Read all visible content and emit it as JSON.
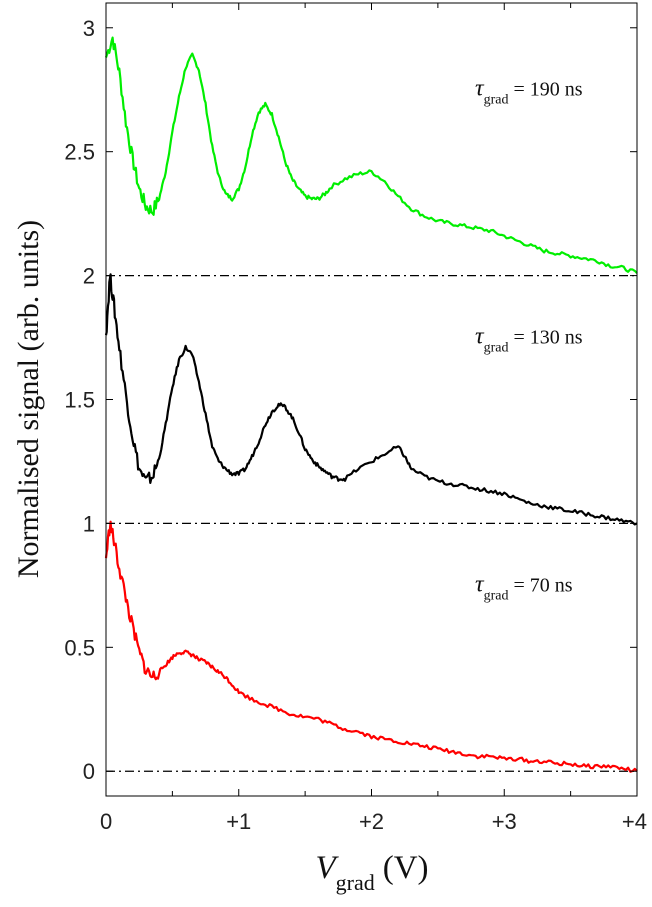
{
  "chart_data": {
    "type": "line",
    "xlabel": {
      "symbol": "V",
      "subscript": "grad",
      "unit": "(V)"
    },
    "ylabel": "Normalised signal (arb. units)",
    "xlim": [
      0,
      4
    ],
    "ylim": [
      -0.1,
      3.1
    ],
    "x_ticks": [
      {
        "value": 0,
        "label": "0"
      },
      {
        "value": 1,
        "label": "+1"
      },
      {
        "value": 2,
        "label": "+2"
      },
      {
        "value": 3,
        "label": "+3"
      },
      {
        "value": 4,
        "label": "+4"
      }
    ],
    "y_ticks": [
      {
        "value": 0,
        "label": "0"
      },
      {
        "value": 0.5,
        "label": "0.5"
      },
      {
        "value": 1,
        "label": "1"
      },
      {
        "value": 1.5,
        "label": "1.5"
      },
      {
        "value": 2,
        "label": "2"
      },
      {
        "value": 2.5,
        "label": "2.5"
      },
      {
        "value": 3,
        "label": "3"
      }
    ],
    "baselines": [
      0,
      1,
      2
    ],
    "grid": false,
    "legend": "none",
    "series": [
      {
        "color": "#00ee00",
        "x": [
          0.0,
          0.05,
          0.1,
          0.15,
          0.2,
          0.25,
          0.3,
          0.35,
          0.4,
          0.45,
          0.5,
          0.55,
          0.6,
          0.65,
          0.7,
          0.75,
          0.8,
          0.85,
          0.9,
          0.95,
          1.0,
          1.05,
          1.1,
          1.15,
          1.2,
          1.25,
          1.3,
          1.35,
          1.4,
          1.45,
          1.5,
          1.55,
          1.6,
          1.65,
          1.7,
          1.8,
          1.9,
          2.0,
          2.1,
          2.2,
          2.3,
          2.4,
          2.5,
          2.6,
          2.7,
          2.8,
          2.9,
          3.0,
          3.1,
          3.2,
          3.3,
          3.4,
          3.5,
          3.6,
          3.7,
          3.8,
          3.9,
          4.0
        ],
        "y": [
          2.88,
          2.96,
          2.82,
          2.62,
          2.47,
          2.35,
          2.28,
          2.26,
          2.31,
          2.42,
          2.58,
          2.72,
          2.84,
          2.89,
          2.83,
          2.69,
          2.52,
          2.4,
          2.33,
          2.31,
          2.35,
          2.44,
          2.57,
          2.66,
          2.69,
          2.65,
          2.56,
          2.46,
          2.39,
          2.35,
          2.32,
          2.31,
          2.31,
          2.33,
          2.36,
          2.39,
          2.41,
          2.42,
          2.38,
          2.32,
          2.27,
          2.24,
          2.22,
          2.21,
          2.2,
          2.19,
          2.18,
          2.16,
          2.14,
          2.12,
          2.1,
          2.09,
          2.08,
          2.07,
          2.06,
          2.04,
          2.03,
          2.01
        ],
        "annotation": {
          "symbol": "τ",
          "subscript": "grad",
          "text": "= 190 ns",
          "x": 2.78,
          "y": 2.75
        }
      },
      {
        "color": "#000000",
        "x": [
          0.0,
          0.03,
          0.06,
          0.1,
          0.15,
          0.2,
          0.25,
          0.3,
          0.35,
          0.4,
          0.45,
          0.5,
          0.55,
          0.6,
          0.65,
          0.7,
          0.75,
          0.8,
          0.85,
          0.9,
          0.95,
          1.0,
          1.05,
          1.1,
          1.15,
          1.2,
          1.25,
          1.3,
          1.35,
          1.4,
          1.45,
          1.5,
          1.55,
          1.6,
          1.65,
          1.7,
          1.75,
          1.8,
          1.9,
          2.0,
          2.1,
          2.2,
          2.25,
          2.3,
          2.4,
          2.5,
          2.6,
          2.7,
          2.8,
          2.9,
          3.0,
          3.1,
          3.2,
          3.3,
          3.4,
          3.5,
          3.6,
          3.7,
          3.8,
          3.9,
          4.0
        ],
        "y": [
          1.76,
          2.0,
          1.88,
          1.71,
          1.52,
          1.35,
          1.22,
          1.17,
          1.19,
          1.26,
          1.4,
          1.55,
          1.66,
          1.71,
          1.68,
          1.57,
          1.44,
          1.31,
          1.25,
          1.22,
          1.2,
          1.2,
          1.22,
          1.27,
          1.33,
          1.4,
          1.45,
          1.48,
          1.47,
          1.43,
          1.37,
          1.3,
          1.26,
          1.23,
          1.21,
          1.19,
          1.18,
          1.18,
          1.22,
          1.25,
          1.28,
          1.31,
          1.27,
          1.22,
          1.19,
          1.17,
          1.16,
          1.15,
          1.14,
          1.13,
          1.12,
          1.1,
          1.08,
          1.07,
          1.06,
          1.05,
          1.04,
          1.03,
          1.02,
          1.01,
          1.0
        ],
        "annotation": {
          "symbol": "τ",
          "subscript": "grad",
          "text": "= 130 ns",
          "x": 2.78,
          "y": 1.75
        }
      },
      {
        "color": "#ff0000",
        "x": [
          0.0,
          0.03,
          0.06,
          0.1,
          0.15,
          0.2,
          0.25,
          0.3,
          0.35,
          0.4,
          0.45,
          0.5,
          0.55,
          0.6,
          0.65,
          0.7,
          0.75,
          0.8,
          0.85,
          0.9,
          0.95,
          1.0,
          1.1,
          1.2,
          1.3,
          1.4,
          1.5,
          1.6,
          1.7,
          1.8,
          1.9,
          2.0,
          2.1,
          2.2,
          2.3,
          2.4,
          2.5,
          2.6,
          2.7,
          2.8,
          2.9,
          3.0,
          3.1,
          3.2,
          3.3,
          3.4,
          3.5,
          3.6,
          3.7,
          3.8,
          3.9,
          4.0
        ],
        "y": [
          0.86,
          1.0,
          0.93,
          0.82,
          0.7,
          0.58,
          0.48,
          0.41,
          0.38,
          0.4,
          0.43,
          0.46,
          0.48,
          0.48,
          0.47,
          0.45,
          0.44,
          0.42,
          0.4,
          0.38,
          0.35,
          0.32,
          0.29,
          0.27,
          0.25,
          0.23,
          0.22,
          0.21,
          0.19,
          0.17,
          0.16,
          0.14,
          0.13,
          0.12,
          0.11,
          0.1,
          0.09,
          0.08,
          0.07,
          0.06,
          0.06,
          0.05,
          0.05,
          0.04,
          0.04,
          0.03,
          0.03,
          0.02,
          0.02,
          0.02,
          0.01,
          0.0
        ],
        "annotation": {
          "symbol": "τ",
          "subscript": "grad",
          "text": "= 70 ns",
          "x": 2.78,
          "y": 0.75
        }
      }
    ]
  }
}
